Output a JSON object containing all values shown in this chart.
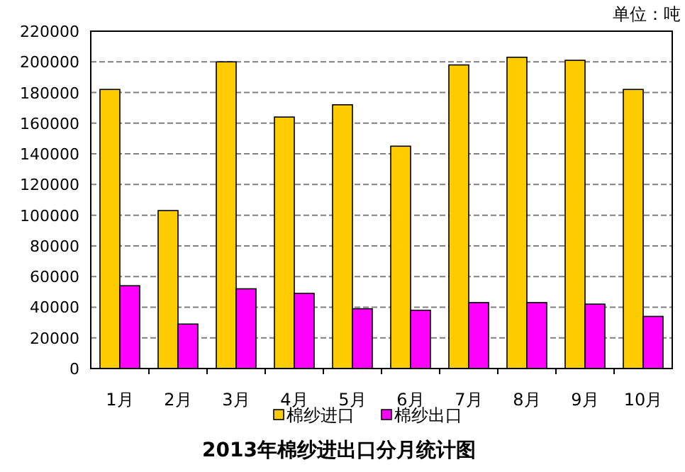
{
  "chart_data": {
    "type": "bar",
    "title": "2013年棉纱进出口分月统计图",
    "annotations": [
      "单位：吨"
    ],
    "categories": [
      "1月",
      "2月",
      "3月",
      "4月",
      "5月",
      "6月",
      "7月",
      "8月",
      "9月",
      "10月"
    ],
    "series": [
      {
        "name": "棉纱进口",
        "color": "#ffcc00",
        "values": [
          182000,
          103000,
          200000,
          164000,
          172000,
          145000,
          198000,
          203000,
          201000,
          182000
        ]
      },
      {
        "name": "棉纱出口",
        "color": "#ff00ff",
        "values": [
          54000,
          29000,
          52000,
          49000,
          39000,
          38000,
          43000,
          43000,
          42000,
          34000
        ]
      }
    ],
    "ylim": [
      0,
      220000
    ],
    "yticks": [
      0,
      20000,
      40000,
      60000,
      80000,
      100000,
      120000,
      140000,
      160000,
      180000,
      200000,
      220000
    ],
    "grid": "y",
    "legend": "bottom"
  }
}
